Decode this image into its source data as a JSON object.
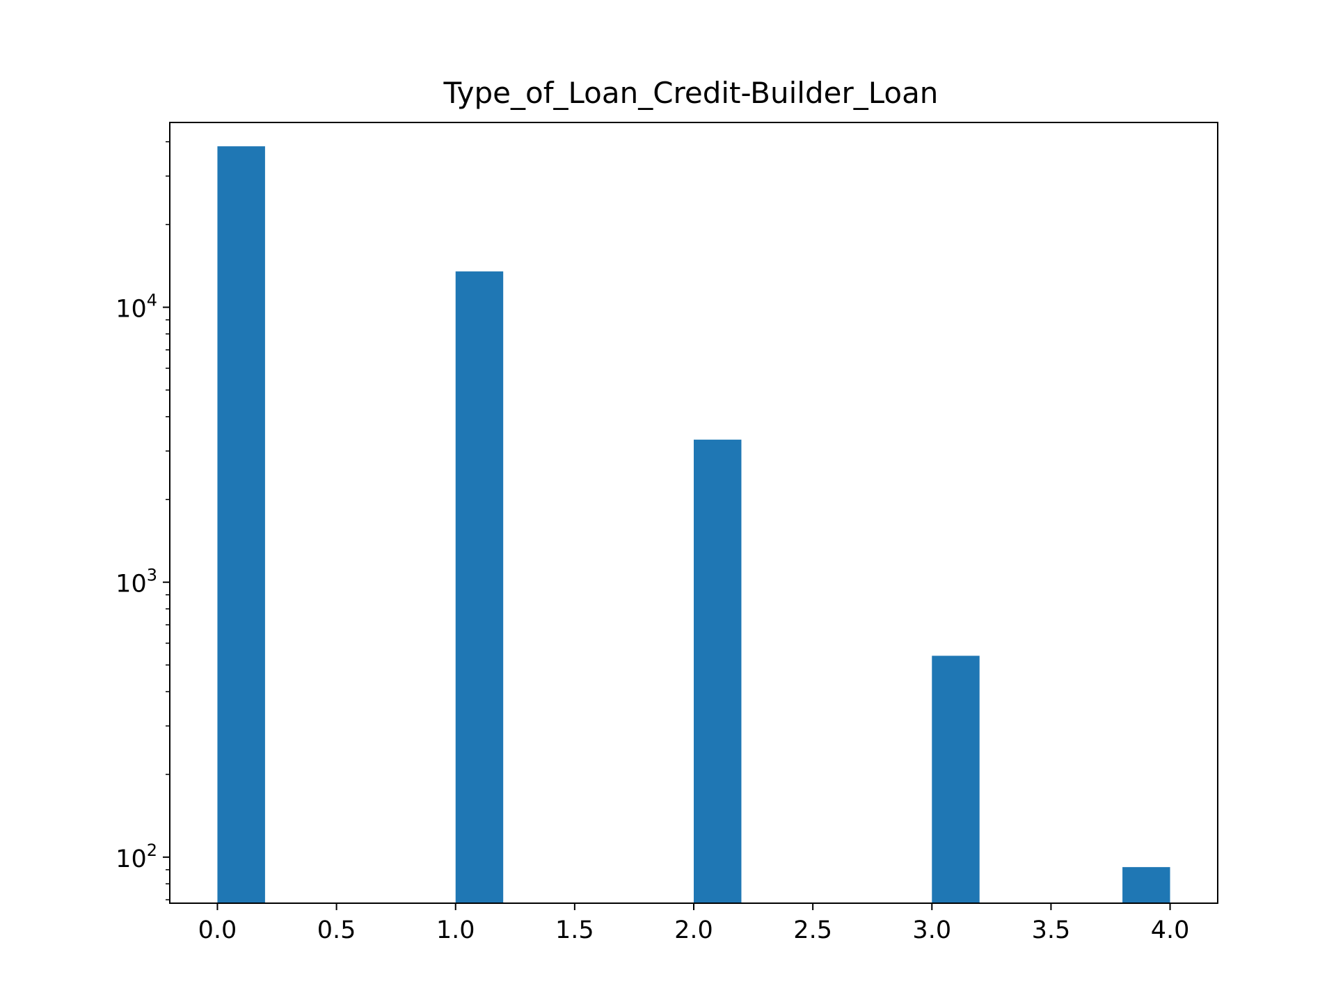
{
  "chart_data": {
    "type": "bar",
    "title": "Type_of_Loan_Credit-Builder_Loan",
    "xlabel": "",
    "ylabel": "",
    "yscale": "log",
    "x": [
      0.1,
      1.1,
      2.1,
      3.1,
      3.9
    ],
    "bin_width": 0.2,
    "values": [
      38500,
      13500,
      3300,
      540,
      92
    ],
    "xlim": [
      -0.2,
      4.2
    ],
    "ylim": [
      68,
      47000
    ],
    "x_ticks": [
      0.0,
      0.5,
      1.0,
      1.5,
      2.0,
      2.5,
      3.0,
      3.5,
      4.0
    ],
    "x_tick_labels": [
      "0.0",
      "0.5",
      "1.0",
      "1.5",
      "2.0",
      "2.5",
      "3.0",
      "3.5",
      "4.0"
    ],
    "y_major_ticks": [
      {
        "value": 100,
        "base": "10",
        "exp": "2"
      },
      {
        "value": 1000,
        "base": "10",
        "exp": "3"
      },
      {
        "value": 10000,
        "base": "10",
        "exp": "4"
      }
    ],
    "grid": false,
    "bar_color": "#1f77b4"
  }
}
